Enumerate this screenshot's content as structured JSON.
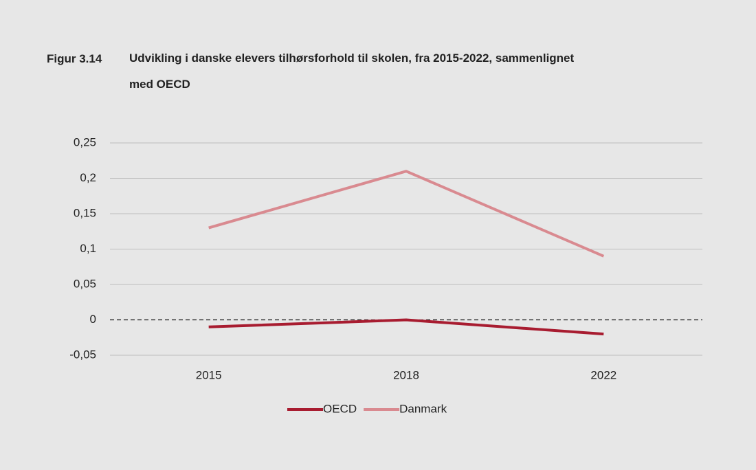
{
  "chart_data": {
    "type": "line",
    "figure_label": "Figur 3.14",
    "title": "Udvikling i danske elevers tilhørsforhold til skolen, fra 2015-2022, sammenlignet med OECD",
    "categories": [
      "2015",
      "2018",
      "2022"
    ],
    "series": [
      {
        "name": "OECD",
        "color": "#a81c30",
        "values": [
          -0.01,
          0,
          -0.02
        ]
      },
      {
        "name": "Danmark",
        "color": "#d98a90",
        "values": [
          0.13,
          0.21,
          0.09
        ]
      }
    ],
    "ylim": [
      -0.05,
      0.25
    ],
    "yticks": [
      {
        "value": -0.05,
        "label": "-0,05"
      },
      0,
      {
        "value": 0.05,
        "label": "0,05"
      },
      {
        "value": 0.1,
        "label": "0,1"
      },
      {
        "value": 0.15,
        "label": "0,15"
      },
      {
        "value": 0.2,
        "label": "0,2"
      },
      {
        "value": 0.25,
        "label": "0,25"
      }
    ],
    "grid": true,
    "legend": "bottom"
  }
}
